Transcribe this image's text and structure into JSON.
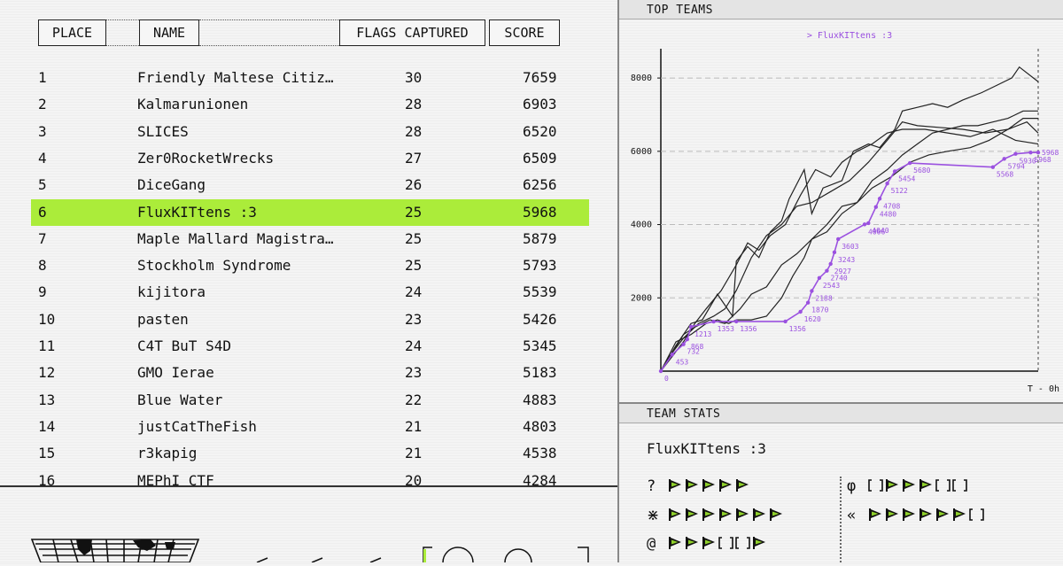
{
  "scoreboard": {
    "headers": {
      "place": "PLACE",
      "name": "NAME",
      "flags": "FLAGS CAPTURED",
      "score": "SCORE"
    },
    "highlight_color": "#abec3a",
    "rows": [
      {
        "place": "1",
        "name": "Friendly Maltese Citiz…",
        "flags": "30",
        "score": "7659"
      },
      {
        "place": "2",
        "name": "Kalmarunionen",
        "flags": "28",
        "score": "6903"
      },
      {
        "place": "3",
        "name": "SLICES",
        "flags": "28",
        "score": "6520"
      },
      {
        "place": "4",
        "name": "Zer0RocketWrecks",
        "flags": "27",
        "score": "6509"
      },
      {
        "place": "5",
        "name": "DiceGang",
        "flags": "26",
        "score": "6256"
      },
      {
        "place": "6",
        "name": "FluxKITtens :3",
        "flags": "25",
        "score": "5968",
        "highlighted": true
      },
      {
        "place": "7",
        "name": "Maple Mallard Magistra…",
        "flags": "25",
        "score": "5879"
      },
      {
        "place": "8",
        "name": "Stockholm Syndrome",
        "flags": "25",
        "score": "5793"
      },
      {
        "place": "9",
        "name": "kijitora",
        "flags": "24",
        "score": "5539"
      },
      {
        "place": "10",
        "name": "pasten",
        "flags": "23",
        "score": "5426"
      },
      {
        "place": "11",
        "name": "C4T BuT S4D",
        "flags": "24",
        "score": "5345"
      },
      {
        "place": "12",
        "name": "GMO Ierae",
        "flags": "23",
        "score": "5183"
      },
      {
        "place": "13",
        "name": "Blue Water",
        "flags": "22",
        "score": "4883"
      },
      {
        "place": "14",
        "name": "justCatTheFish",
        "flags": "21",
        "score": "4803"
      },
      {
        "place": "15",
        "name": "r3kapig",
        "flags": "21",
        "score": "4538"
      },
      {
        "place": "16",
        "name": "MEPhI CTF",
        "flags": "20",
        "score": "4284"
      }
    ]
  },
  "top_teams": {
    "title": "TOP TEAMS",
    "legend": "> FluxKITtens :3",
    "time_label": "T - 0h",
    "y_ticks": [
      "8000",
      "6000",
      "4000",
      "2000"
    ],
    "highlight_color": "#9b51e0"
  },
  "chart_data": {
    "type": "line",
    "title": "",
    "xlabel": "T - 0h",
    "ylabel": "",
    "ylim": [
      0,
      8800
    ],
    "y_ticks": [
      2000,
      4000,
      6000,
      8000
    ],
    "series": [
      {
        "name": "FluxKITtens :3",
        "highlighted": true,
        "x": [
          0,
          3,
          6,
          7,
          8,
          14,
          20,
          33,
          37,
          39,
          40,
          42,
          44,
          45,
          46,
          47,
          54,
          55,
          57,
          58,
          60,
          62,
          66,
          88,
          91,
          94,
          98,
          100
        ],
        "y": [
          0,
          453,
          732,
          868,
          1213,
          1353,
          1356,
          1356,
          1620,
          1870,
          2188,
          2543,
          2740,
          2927,
          3243,
          3603,
          4006,
          4040,
          4480,
          4708,
          5122,
          5454,
          5680,
          5568,
          5794,
          5930,
          5968,
          5968
        ],
        "point_labels": [
          "0",
          "453",
          "732",
          "868",
          "1213",
          "1353",
          "1356",
          "1356",
          "1620",
          "1870",
          "2188",
          "2543",
          "2740",
          "2927",
          "3243",
          "3603",
          "4006",
          "4040",
          "4480",
          "4708",
          "5122",
          "5454",
          "5680",
          "5568",
          "5794",
          "5930",
          "5968",
          "5968"
        ]
      },
      {
        "x": [
          0,
          4,
          8,
          11,
          15,
          19,
          20,
          23,
          26,
          29,
          32,
          34,
          38,
          40,
          43,
          48,
          51,
          55,
          58,
          62,
          64,
          68,
          72,
          76,
          80,
          85,
          89,
          93,
          95,
          100
        ],
        "y": [
          0,
          700,
          1300,
          1400,
          2100,
          1500,
          3000,
          3400,
          3100,
          3800,
          4100,
          4700,
          5500,
          4300,
          5000,
          5200,
          6000,
          6200,
          6100,
          6600,
          7100,
          7200,
          7300,
          7200,
          7400,
          7600,
          7800,
          8000,
          8300,
          7900
        ]
      },
      {
        "x": [
          0,
          3,
          6,
          10,
          14,
          17,
          20,
          24,
          28,
          32,
          36,
          40,
          45,
          50,
          55,
          60,
          64,
          68,
          74,
          80,
          86,
          92,
          97,
          100
        ],
        "y": [
          0,
          500,
          900,
          1300,
          1500,
          1700,
          2200,
          3100,
          3700,
          4000,
          4500,
          4600,
          4900,
          5200,
          5700,
          6300,
          6800,
          6700,
          6650,
          6600,
          6500,
          6600,
          6800,
          6500
        ]
      },
      {
        "x": [
          0,
          3,
          6,
          9,
          12,
          16,
          20,
          23,
          26,
          29,
          33,
          37,
          41,
          45,
          48,
          52,
          56,
          60,
          64,
          70,
          76,
          82,
          88,
          94,
          100
        ],
        "y": [
          0,
          400,
          800,
          1300,
          1700,
          2200,
          2900,
          3500,
          3300,
          3700,
          4000,
          4800,
          5500,
          5300,
          5700,
          6000,
          6200,
          6500,
          6600,
          6600,
          6500,
          6400,
          6600,
          6300,
          6200
        ]
      },
      {
        "x": [
          0,
          3,
          6,
          9,
          13,
          17,
          21,
          24,
          28,
          32,
          36,
          40,
          44,
          48,
          52,
          56,
          61,
          66,
          71,
          76,
          82,
          87,
          92,
          96,
          100
        ],
        "y": [
          0,
          500,
          1000,
          1200,
          1400,
          1300,
          1700,
          2100,
          2300,
          2900,
          3200,
          3600,
          3800,
          4300,
          4600,
          5000,
          5300,
          5700,
          5900,
          6000,
          6100,
          6300,
          6600,
          6900,
          6900
        ]
      },
      {
        "x": [
          0,
          4,
          8,
          12,
          15,
          18,
          20,
          24,
          28,
          32,
          35,
          38,
          40,
          44,
          48,
          52,
          56,
          60,
          64,
          68,
          72,
          76,
          80,
          84,
          88,
          92,
          96,
          100
        ],
        "y": [
          0,
          800,
          1000,
          1300,
          1400,
          1300,
          1400,
          1400,
          1500,
          2000,
          2600,
          3100,
          3600,
          4000,
          4500,
          4600,
          5200,
          5500,
          5900,
          6200,
          6500,
          6600,
          6700,
          6700,
          6800,
          6900,
          7100,
          7100
        ]
      }
    ]
  },
  "team_stats": {
    "title": "TEAM STATS",
    "team_name": "FluxKITtens :3",
    "flag_color": "#8fd02a",
    "categories": [
      {
        "icon": "question-icon",
        "symbol": "?",
        "solves": [
          1,
          1,
          1,
          1,
          1
        ]
      },
      {
        "icon": "pwn-star-icon",
        "symbol": "⋇",
        "solves": [
          1,
          1,
          1,
          1,
          1,
          1,
          1
        ]
      },
      {
        "icon": "spiral-icon",
        "symbol": "@",
        "solves": [
          1,
          1,
          1,
          0,
          0,
          1
        ]
      },
      {
        "icon": "crypto-phi-icon",
        "symbol": "φ",
        "solves": [
          0,
          1,
          1,
          1,
          0,
          0
        ]
      },
      {
        "icon": "rev-arrows-icon",
        "symbol": "«",
        "solves": [
          1,
          1,
          1,
          1,
          1,
          1,
          0
        ]
      }
    ]
  }
}
